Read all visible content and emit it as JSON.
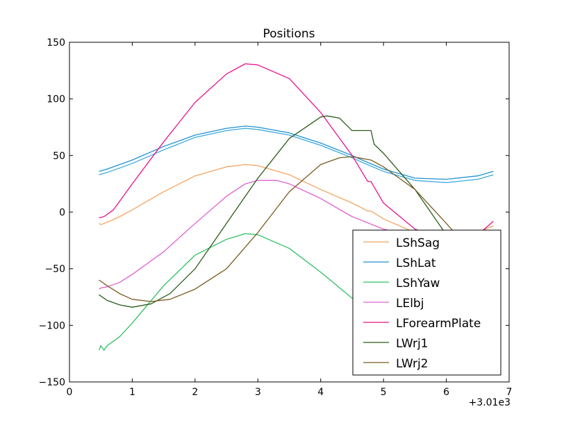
{
  "chart_data": {
    "type": "line",
    "title": "Positions",
    "xlabel": "",
    "ylabel": "",
    "xlim": [
      0,
      7
    ],
    "ylim": [
      -150,
      150
    ],
    "x_offset_label": "+3.01e3",
    "x_ticks": [
      0,
      1,
      2,
      3,
      4,
      5,
      6,
      7
    ],
    "x_tick_labels": [
      "0",
      "1",
      "2",
      "3",
      "4",
      "5",
      "6",
      "7"
    ],
    "y_ticks": [
      -150,
      -100,
      -50,
      0,
      50,
      100,
      150
    ],
    "y_tick_labels": [
      "−150",
      "−100",
      "−50",
      "0",
      "50",
      "100",
      "150"
    ],
    "grid": false,
    "legend_position": "lower-right",
    "series": [
      {
        "name": "LShSag",
        "color": "#f4a460",
        "x": [
          0.47,
          0.5,
          0.6,
          0.8,
          1.0,
          1.5,
          2.0,
          2.5,
          2.8,
          3.0,
          3.5,
          4.0,
          4.5,
          4.75,
          4.8,
          5.0,
          5.5,
          6.0,
          6.5,
          6.75
        ],
        "y": [
          -10,
          -11,
          -9,
          -4,
          2,
          18,
          32,
          40,
          42,
          41,
          33,
          20,
          8,
          1,
          1,
          -6,
          -18,
          -24,
          -18,
          -12
        ]
      },
      {
        "name": "LShLat",
        "color": "#1f90d0",
        "x": [
          0.47,
          0.6,
          1.0,
          1.5,
          2.0,
          2.5,
          2.8,
          3.0,
          3.5,
          4.0,
          4.5,
          4.7,
          5.0,
          5.5,
          6.0,
          6.5,
          6.75
        ],
        "y": [
          36,
          38,
          46,
          58,
          68,
          74,
          76,
          75,
          70,
          61,
          50,
          45,
          38,
          30,
          29,
          32,
          36
        ]
      },
      {
        "name": "LShLat",
        "color": "#3aa8e0",
        "x": [
          0.47,
          0.6,
          1.0,
          1.5,
          2.0,
          2.5,
          2.8,
          3.0,
          3.5,
          4.0,
          4.5,
          4.7,
          5.0,
          5.5,
          6.0,
          6.5,
          6.75
        ],
        "y": [
          33,
          35,
          43,
          55,
          66,
          72,
          74,
          73,
          68,
          59,
          48,
          43,
          36,
          28,
          26,
          29,
          33
        ]
      },
      {
        "name": "LShYaw",
        "color": "#2ec060",
        "x": [
          0.47,
          0.5,
          0.55,
          0.6,
          0.8,
          1.0,
          1.5,
          2.0,
          2.5,
          2.8,
          3.0,
          3.5,
          4.0,
          4.5,
          4.9
        ],
        "y": [
          -122,
          -118,
          -122,
          -118,
          -110,
          -98,
          -65,
          -38,
          -24,
          -19,
          -20,
          -32,
          -53,
          -76,
          -92
        ]
      },
      {
        "name": "LElbj",
        "color": "#e060d0",
        "x": [
          0.47,
          0.5,
          0.6,
          0.8,
          1.0,
          1.5,
          2.0,
          2.5,
          2.8,
          3.0,
          3.3,
          3.5,
          4.0,
          4.5,
          5.0,
          5.5,
          6.0
        ],
        "y": [
          -68,
          -67,
          -66,
          -62,
          -55,
          -35,
          -10,
          14,
          25,
          28,
          28,
          25,
          12,
          -4,
          -15,
          -22,
          -26
        ]
      },
      {
        "name": "LForearmPlate",
        "color": "#e8108c",
        "x": [
          0.47,
          0.55,
          0.7,
          1.0,
          1.5,
          2.0,
          2.5,
          2.8,
          3.0,
          3.5,
          4.0,
          4.5,
          4.75,
          4.8,
          5.0,
          5.5,
          6.0,
          6.5,
          6.75
        ],
        "y": [
          -5,
          -4,
          2,
          25,
          62,
          97,
          122,
          131,
          130,
          118,
          88,
          50,
          27,
          27,
          8,
          -15,
          -25,
          -20,
          -8
        ]
      },
      {
        "name": "LWrj1",
        "color": "#2a5a1a",
        "x": [
          0.47,
          0.6,
          0.8,
          1.0,
          1.3,
          1.6,
          2.0,
          2.5,
          3.0,
          3.5,
          4.0,
          4.1,
          4.3,
          4.5,
          4.8,
          4.85,
          5.0,
          5.5,
          6.0,
          6.4
        ],
        "y": [
          -73,
          -78,
          -82,
          -84,
          -81,
          -72,
          -50,
          -10,
          30,
          65,
          84,
          85,
          83,
          72,
          72,
          60,
          52,
          20,
          -20,
          -52
        ]
      },
      {
        "name": "LWrj2",
        "color": "#7a5a20",
        "x": [
          0.47,
          0.6,
          0.8,
          1.0,
          1.3,
          1.6,
          2.0,
          2.5,
          3.0,
          3.5,
          4.0,
          4.3,
          4.5,
          4.8,
          5.0,
          5.5,
          6.0,
          6.4
        ],
        "y": [
          -60,
          -65,
          -72,
          -77,
          -79,
          -77,
          -68,
          -50,
          -18,
          18,
          42,
          48,
          49,
          46,
          40,
          20,
          -10,
          -35
        ]
      }
    ],
    "legend_entries": [
      "LShSag",
      "LShLat",
      "LShYaw",
      "LElbj",
      "LForearmPlate",
      "LWrj1",
      "LWrj2"
    ],
    "legend_colors": [
      "#f4a460",
      "#1f90d0",
      "#2ec060",
      "#e060d0",
      "#e8108c",
      "#2a5a1a",
      "#7a5a20"
    ]
  }
}
